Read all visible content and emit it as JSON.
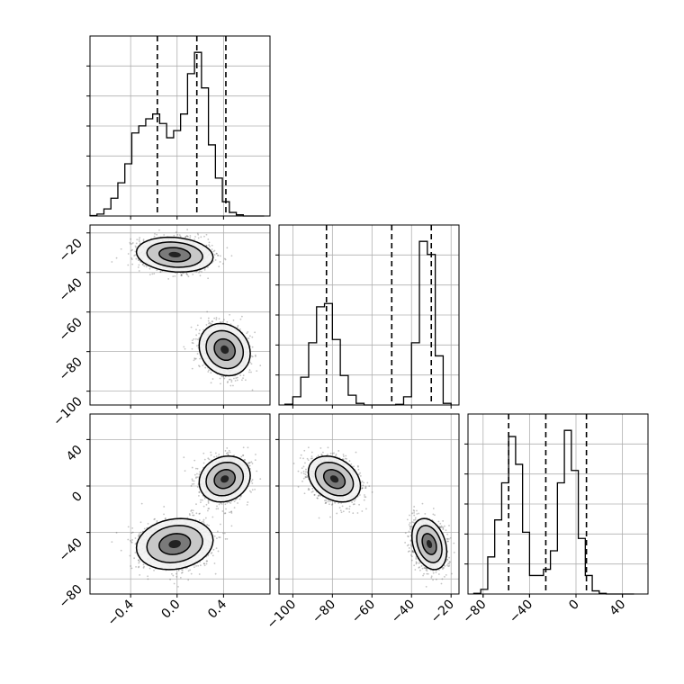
{
  "chart_data": {
    "type": "corner",
    "style": {
      "grid": true,
      "colors": {
        "line": "#000000",
        "grid": "#b0b0b0",
        "points": "#555555"
      }
    },
    "parameters": [
      {
        "range": [
          -0.75,
          0.8
        ],
        "ticks": [
          -0.4,
          0.0,
          0.4
        ],
        "tick_labels": [
          "−0.4",
          "0.0",
          "0.4"
        ],
        "quantiles": [
          -0.17,
          0.17,
          0.42
        ]
      },
      {
        "range": [
          -107,
          -16
        ],
        "ticks": [
          -100,
          -80,
          -60,
          -40,
          -20
        ],
        "tick_labels": [
          "−100",
          "−80",
          "−60",
          "−40",
          "−20"
        ],
        "quantiles": [
          -83,
          -50,
          -30
        ]
      },
      {
        "range": [
          -93,
          62
        ],
        "ticks": [
          -80,
          -40,
          0,
          40
        ],
        "tick_labels": [
          "−80",
          "−40",
          "0",
          "40"
        ],
        "quantiles": [
          -58,
          -26,
          9
        ]
      }
    ],
    "histograms": [
      {
        "bins": [
          -0.75,
          -0.69,
          -0.63,
          -0.57,
          -0.51,
          -0.45,
          -0.39,
          -0.33,
          -0.27,
          -0.21,
          -0.15,
          -0.09,
          -0.03,
          0.03,
          0.09,
          0.15,
          0.21,
          0.27,
          0.33,
          0.39,
          0.45,
          0.51,
          0.57,
          0.63,
          0.69,
          0.75
        ],
        "counts": [
          0.02,
          0.08,
          0.3,
          0.75,
          1.4,
          2.2,
          3.5,
          3.8,
          4.1,
          4.3,
          3.9,
          3.3,
          3.6,
          4.3,
          6.0,
          6.9,
          5.4,
          3.0,
          1.6,
          0.6,
          0.15,
          0.05,
          0,
          0,
          0
        ]
      },
      {
        "bins": [
          -104,
          -100,
          -96,
          -92,
          -88,
          -84,
          -80,
          -76,
          -72,
          -68,
          -64,
          -60,
          -56,
          -52,
          -48,
          -44,
          -40,
          -36,
          -32,
          -28,
          -24,
          -20
        ],
        "counts": [
          0.05,
          0.5,
          1.7,
          3.8,
          6.0,
          6.2,
          4.0,
          1.8,
          0.6,
          0.1,
          0,
          0,
          0,
          0,
          0.04,
          0.5,
          3.8,
          10.0,
          9.2,
          3.0,
          0.1
        ]
      },
      {
        "bins": [
          -88,
          -82,
          -76,
          -70,
          -64,
          -58,
          -52,
          -46,
          -40,
          -34,
          -28,
          -22,
          -16,
          -10,
          -4,
          2,
          8,
          14,
          20,
          26,
          32,
          38,
          44,
          50
        ],
        "counts": [
          0.02,
          0.15,
          1.2,
          2.4,
          3.6,
          5.1,
          4.2,
          2.0,
          0.6,
          0.6,
          0.8,
          1.4,
          3.6,
          5.3,
          4.0,
          1.8,
          0.6,
          0.1,
          0.02,
          0,
          0,
          0,
          0
        ]
      }
    ],
    "modes": [
      {
        "weight": 0.5,
        "mean": [
          -0.02,
          -31,
          -50
        ],
        "sd": [
          0.15,
          4,
          10
        ]
      },
      {
        "weight": 0.5,
        "mean": [
          0.41,
          -79,
          6
        ],
        "sd": [
          0.1,
          6,
          9
        ]
      }
    ],
    "pair_correlations": {
      "1-0": -0.15,
      "2-0": 0.15,
      "2-1": -0.3
    }
  }
}
